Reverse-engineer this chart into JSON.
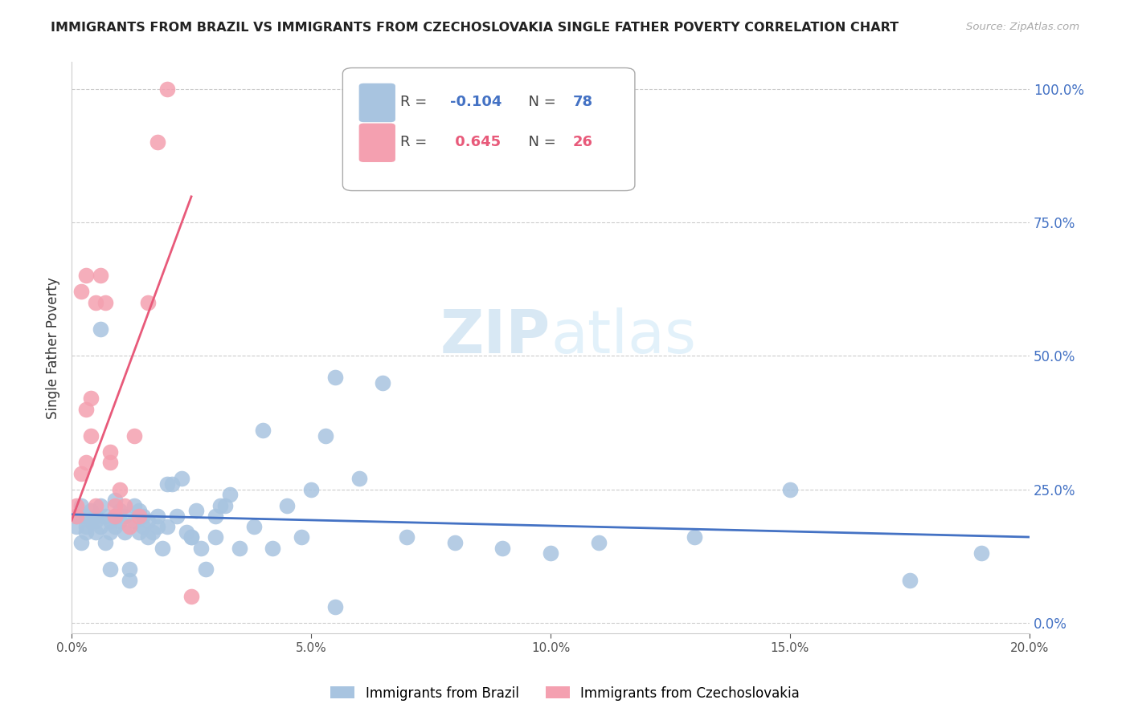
{
  "title": "IMMIGRANTS FROM BRAZIL VS IMMIGRANTS FROM CZECHOSLOVAKIA SINGLE FATHER POVERTY CORRELATION CHART",
  "source": "Source: ZipAtlas.com",
  "ylabel": "Single Father Poverty",
  "legend_label1": "Immigrants from Brazil",
  "legend_label2": "Immigrants from Czechoslovakia",
  "R1": -0.104,
  "N1": 78,
  "R2": 0.645,
  "N2": 26,
  "color_brazil": "#a8c4e0",
  "color_czech": "#f4a0b0",
  "color_brazil_line": "#4472c4",
  "color_czech_line": "#e85a7a",
  "color_right_axis": "#4472c4",
  "xmin": 0.0,
  "xmax": 0.2,
  "ymin": -0.02,
  "ymax": 1.05,
  "brazil_x": [
    0.001,
    0.001,
    0.002,
    0.002,
    0.003,
    0.003,
    0.003,
    0.004,
    0.004,
    0.005,
    0.005,
    0.005,
    0.006,
    0.006,
    0.007,
    0.007,
    0.008,
    0.008,
    0.009,
    0.009,
    0.01,
    0.01,
    0.011,
    0.011,
    0.012,
    0.013,
    0.013,
    0.014,
    0.015,
    0.015,
    0.016,
    0.016,
    0.017,
    0.018,
    0.019,
    0.02,
    0.021,
    0.022,
    0.023,
    0.024,
    0.025,
    0.026,
    0.027,
    0.028,
    0.03,
    0.031,
    0.032,
    0.033,
    0.035,
    0.038,
    0.04,
    0.042,
    0.045,
    0.048,
    0.05,
    0.053,
    0.055,
    0.06,
    0.065,
    0.07,
    0.08,
    0.09,
    0.1,
    0.11,
    0.13,
    0.15,
    0.175,
    0.19,
    0.006,
    0.008,
    0.009,
    0.012,
    0.014,
    0.018,
    0.02,
    0.025,
    0.03,
    0.055
  ],
  "brazil_y": [
    0.18,
    0.2,
    0.15,
    0.22,
    0.18,
    0.2,
    0.17,
    0.19,
    0.21,
    0.17,
    0.19,
    0.2,
    0.18,
    0.22,
    0.15,
    0.2,
    0.17,
    0.19,
    0.18,
    0.2,
    0.19,
    0.21,
    0.17,
    0.2,
    0.08,
    0.19,
    0.22,
    0.21,
    0.2,
    0.18,
    0.19,
    0.16,
    0.17,
    0.18,
    0.14,
    0.18,
    0.26,
    0.2,
    0.27,
    0.17,
    0.16,
    0.21,
    0.14,
    0.1,
    0.16,
    0.22,
    0.22,
    0.24,
    0.14,
    0.18,
    0.36,
    0.14,
    0.22,
    0.16,
    0.25,
    0.35,
    0.46,
    0.27,
    0.45,
    0.16,
    0.15,
    0.14,
    0.13,
    0.15,
    0.16,
    0.25,
    0.08,
    0.13,
    0.55,
    0.1,
    0.23,
    0.1,
    0.17,
    0.2,
    0.26,
    0.16,
    0.2,
    0.03
  ],
  "czech_x": [
    0.001,
    0.001,
    0.002,
    0.002,
    0.003,
    0.003,
    0.004,
    0.004,
    0.005,
    0.005,
    0.006,
    0.007,
    0.008,
    0.008,
    0.009,
    0.009,
    0.01,
    0.011,
    0.012,
    0.013,
    0.014,
    0.016,
    0.018,
    0.02,
    0.025,
    0.003
  ],
  "czech_y": [
    0.2,
    0.22,
    0.28,
    0.62,
    0.3,
    0.4,
    0.35,
    0.42,
    0.22,
    0.6,
    0.65,
    0.6,
    0.32,
    0.3,
    0.2,
    0.22,
    0.25,
    0.22,
    0.18,
    0.35,
    0.2,
    0.6,
    0.9,
    1.0,
    0.05,
    0.65
  ],
  "x_ticks": [
    0.0,
    0.05,
    0.1,
    0.15,
    0.2
  ],
  "x_tick_labels": [
    "0.0%",
    "5.0%",
    "10.0%",
    "15.0%",
    "20.0%"
  ],
  "y_ticks": [
    0.0,
    0.25,
    0.5,
    0.75,
    1.0
  ],
  "y_tick_labels": [
    "0.0%",
    "25.0%",
    "50.0%",
    "75.0%",
    "100.0%"
  ]
}
